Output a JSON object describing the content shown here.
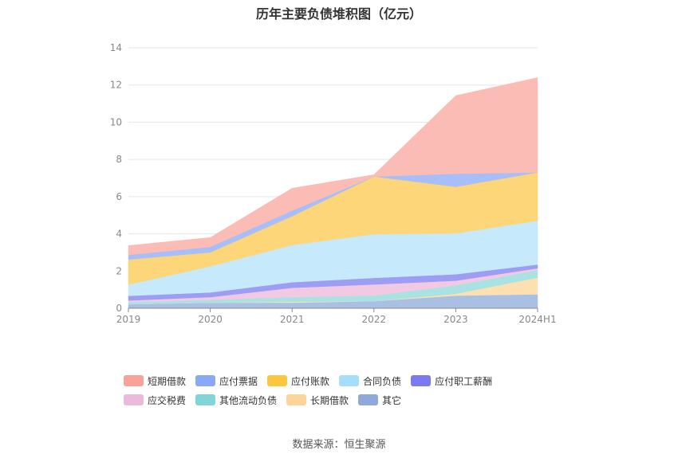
{
  "chart_data": {
    "type": "area",
    "stacked": true,
    "title": "历年主要负债堆积图（亿元）",
    "categories": [
      "2019",
      "2020",
      "2021",
      "2022",
      "2023",
      "2024H1"
    ],
    "ylim": [
      0,
      14
    ],
    "yticks": [
      0,
      2,
      4,
      6,
      8,
      10,
      12,
      14
    ],
    "grid": true,
    "legend_position": "bottom",
    "series": [
      {
        "name": "其它",
        "color": "#a9bfe3",
        "values": [
          0.22,
          0.3,
          0.3,
          0.38,
          0.68,
          0.75
        ]
      },
      {
        "name": "长期借款",
        "color": "#fde0b2",
        "values": [
          0.0,
          0.0,
          0.05,
          0.0,
          0.1,
          0.9
        ]
      },
      {
        "name": "其他流动负债",
        "color": "#a8e2e2",
        "values": [
          0.1,
          0.15,
          0.25,
          0.3,
          0.45,
          0.4
        ]
      },
      {
        "name": "应交税费",
        "color": "#f2c9e3",
        "values": [
          0.1,
          0.15,
          0.5,
          0.6,
          0.25,
          0.1
        ]
      },
      {
        "name": "应付职工薪酬",
        "color": "#9c9df3",
        "values": [
          0.25,
          0.25,
          0.3,
          0.35,
          0.35,
          0.2
        ]
      },
      {
        "name": "合同负债",
        "color": "#c6e9fb",
        "values": [
          0.6,
          1.4,
          2.0,
          2.35,
          2.2,
          2.35
        ]
      },
      {
        "name": "应付账款",
        "color": "#fed67a",
        "values": [
          1.35,
          0.75,
          1.55,
          3.1,
          2.5,
          2.6
        ]
      },
      {
        "name": "应付票据",
        "color": "#a8bef9",
        "values": [
          0.25,
          0.3,
          0.3,
          0.0,
          0.7,
          0.0
        ]
      },
      {
        "name": "短期借款",
        "color": "#fbbcb6",
        "values": [
          0.5,
          0.5,
          1.2,
          0.1,
          4.2,
          5.1
        ]
      }
    ],
    "legend_order": [
      "短期借款",
      "应付票据",
      "应付账款",
      "合同负债",
      "应付职工薪酬",
      "应交税费",
      "其他流动负债",
      "长期借款",
      "其它"
    ],
    "legend_colors": {
      "短期借款": "#f7a39b",
      "应付票据": "#8aa8f8",
      "应付账款": "#fcc63f",
      "合同负债": "#a6ddfa",
      "应付职工薪酬": "#7b7bf0",
      "应交税费": "#ebb9dc",
      "其他流动负债": "#80d6d6",
      "长期借款": "#fdd59a",
      "其它": "#8eaadb"
    }
  },
  "source_text": "数据来源：恒生聚源"
}
